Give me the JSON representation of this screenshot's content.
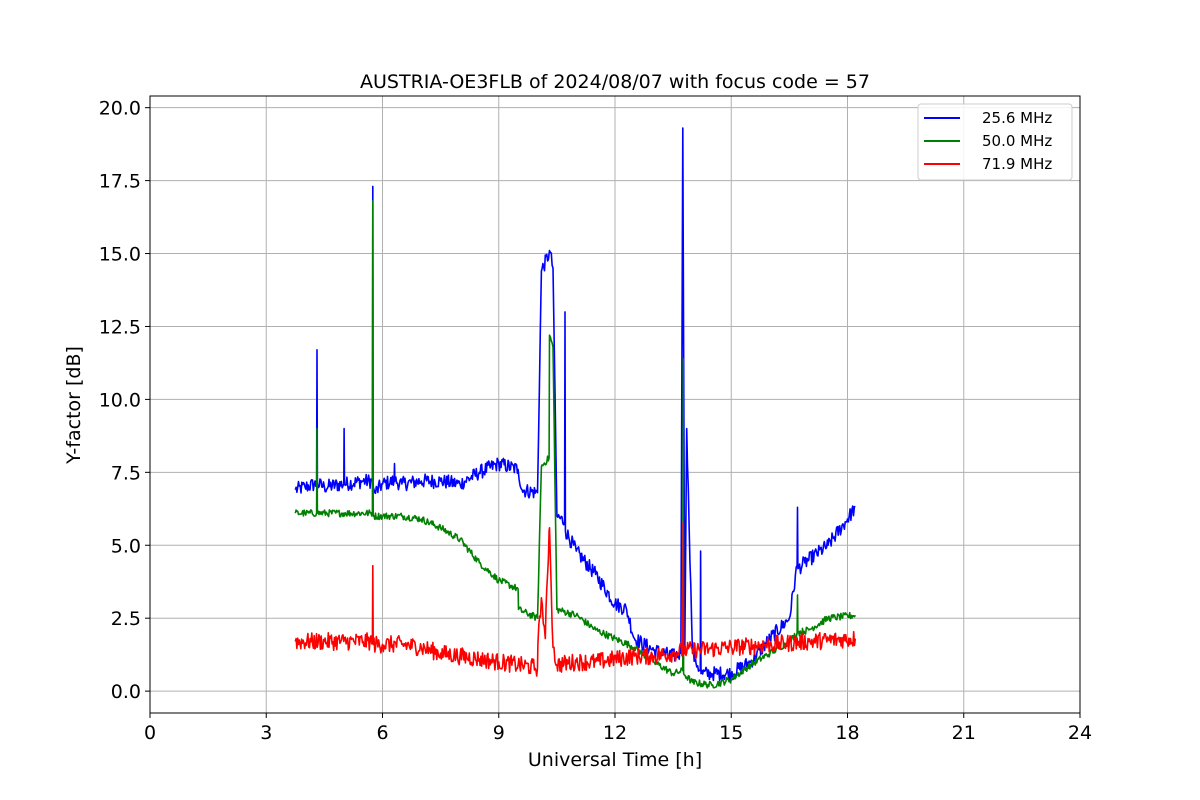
{
  "chart_data": {
    "type": "line",
    "title": "AUSTRIA-OE3FLB of 2024/08/07 with focus code = 57",
    "xlabel": "Universal Time [h]",
    "ylabel": "Y-factor [dB]",
    "xlim": [
      0,
      24
    ],
    "ylim": [
      -0.75,
      20.4
    ],
    "xticks": [
      0,
      3,
      6,
      9,
      12,
      15,
      18,
      21,
      24
    ],
    "xtick_labels": [
      "0",
      "3",
      "6",
      "9",
      "12",
      "15",
      "18",
      "21",
      "24"
    ],
    "yticks": [
      0,
      2.5,
      5,
      7.5,
      10,
      12.5,
      15,
      17.5,
      20
    ],
    "ytick_labels": [
      "0.0",
      "2.5",
      "5.0",
      "7.5",
      "10.0",
      "12.5",
      "15.0",
      "17.5",
      "20.0"
    ],
    "grid": true,
    "legend_position": "top-right",
    "series": [
      {
        "name": "25.6 MHz",
        "color": "#0000ff",
        "noise": 0.25,
        "x": [
          3.75,
          4.0,
          4.3,
          4.31,
          4.32,
          4.5,
          5.0,
          5.01,
          5.02,
          5.5,
          5.74,
          5.75,
          5.76,
          5.8,
          6.0,
          6.3,
          6.31,
          6.32,
          6.5,
          7.0,
          7.5,
          8.0,
          8.5,
          9.0,
          9.5,
          9.6,
          10.0,
          10.1,
          10.3,
          10.31,
          10.4,
          10.5,
          10.7,
          10.71,
          10.72,
          11.0,
          11.5,
          12.0,
          12.3,
          12.5,
          13.0,
          13.5,
          13.7,
          13.75,
          13.8,
          13.85,
          14.0,
          14.2,
          14.21,
          14.22,
          14.5,
          15.0,
          15.5,
          16.0,
          16.5,
          16.7,
          16.71,
          16.72,
          16.9,
          17.5,
          18.0,
          18.2
        ],
        "y": [
          6.9,
          7.0,
          7.1,
          11.7,
          7.1,
          7.0,
          7.1,
          9.0,
          7.1,
          7.2,
          7.2,
          17.3,
          7.0,
          6.8,
          7.1,
          7.2,
          7.8,
          7.2,
          7.1,
          7.2,
          7.2,
          7.1,
          7.5,
          7.8,
          7.6,
          6.9,
          6.8,
          14.4,
          15.0,
          15.1,
          14.5,
          6.0,
          5.8,
          13.0,
          5.5,
          4.8,
          4.0,
          3.0,
          2.8,
          1.8,
          1.4,
          1.2,
          1.3,
          19.3,
          1.4,
          9.0,
          1.3,
          0.7,
          4.8,
          0.6,
          0.6,
          0.6,
          1.0,
          1.8,
          2.5,
          4.3,
          6.3,
          4.2,
          4.4,
          5.0,
          5.9,
          6.3
        ]
      },
      {
        "name": "50.0 MHz",
        "color": "#008000",
        "noise": 0.12,
        "x": [
          3.75,
          4.0,
          4.3,
          4.31,
          4.32,
          5.0,
          5.01,
          5.02,
          5.74,
          5.75,
          5.76,
          6.0,
          6.5,
          7.0,
          7.5,
          8.0,
          8.5,
          9.0,
          9.5,
          9.51,
          10.0,
          10.1,
          10.3,
          10.31,
          10.4,
          10.5,
          11.0,
          11.5,
          12.0,
          12.5,
          13.0,
          13.5,
          13.75,
          13.76,
          13.77,
          14.0,
          14.5,
          15.0,
          15.5,
          16.0,
          16.5,
          16.7,
          16.71,
          16.72,
          17.0,
          17.5,
          18.2
        ],
        "y": [
          6.1,
          6.1,
          6.1,
          9.0,
          6.1,
          6.1,
          6.0,
          6.1,
          6.1,
          16.8,
          6.0,
          6.0,
          6.0,
          5.9,
          5.6,
          5.2,
          4.4,
          3.8,
          3.5,
          2.8,
          2.5,
          7.7,
          8.0,
          12.2,
          11.8,
          2.8,
          2.6,
          2.1,
          1.8,
          1.5,
          1.0,
          0.6,
          0.7,
          11.4,
          0.6,
          0.3,
          0.2,
          0.4,
          0.9,
          1.3,
          1.7,
          2.0,
          3.3,
          2.0,
          2.1,
          2.5,
          2.6
        ]
      },
      {
        "name": "71.9 MHz",
        "color": "#ff0000",
        "noise": 0.3,
        "x": [
          3.75,
          4.5,
          5.0,
          5.5,
          5.74,
          5.75,
          5.76,
          6.0,
          6.5,
          7.0,
          7.5,
          8.0,
          8.5,
          9.0,
          9.5,
          10.0,
          10.01,
          10.1,
          10.2,
          10.3,
          10.31,
          10.4,
          10.5,
          11.0,
          11.5,
          12.0,
          12.5,
          13.0,
          13.5,
          13.75,
          13.76,
          13.77,
          14.0,
          15.0,
          16.0,
          17.0,
          18.2
        ],
        "y": [
          1.7,
          1.7,
          1.7,
          1.7,
          1.7,
          4.3,
          1.6,
          1.6,
          1.6,
          1.5,
          1.3,
          1.2,
          1.1,
          1.0,
          0.9,
          0.8,
          1.6,
          3.2,
          1.8,
          5.5,
          5.6,
          1.5,
          0.9,
          1.0,
          1.0,
          1.1,
          1.2,
          1.2,
          1.3,
          1.4,
          5.8,
          1.4,
          1.4,
          1.5,
          1.6,
          1.7,
          1.8
        ]
      }
    ]
  }
}
